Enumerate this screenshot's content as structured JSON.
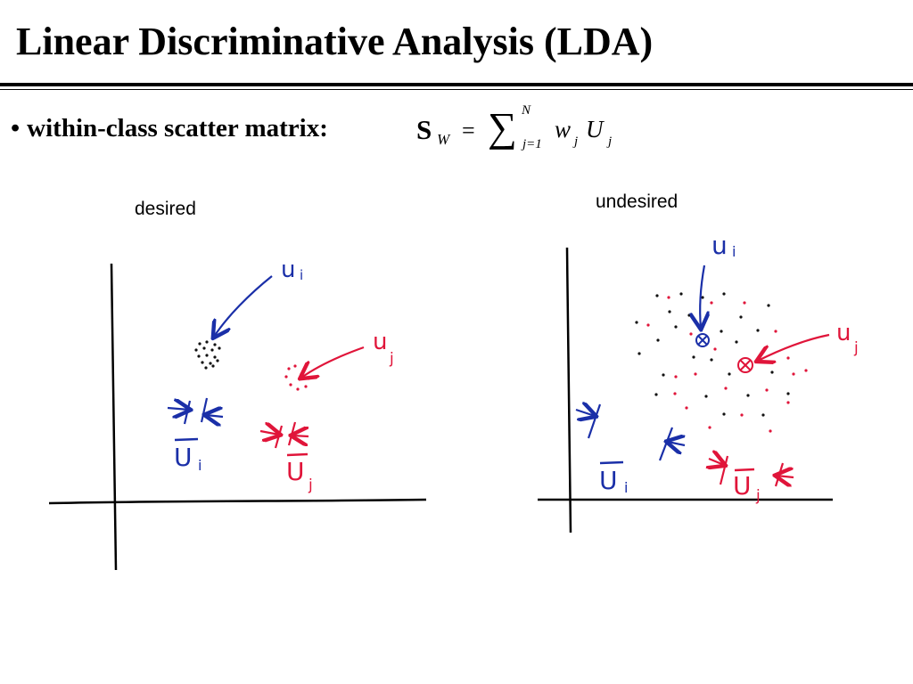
{
  "slide": {
    "title": "Linear Discriminative Analysis (LDA)",
    "bullet": "within-class scatter matrix:",
    "bullet_symbol": "•",
    "formula": {
      "lhs": "S",
      "lhs_sub": "W",
      "eq": "=",
      "sum_symbol": "∑",
      "sum_upper": "N",
      "sum_lower": "j=1",
      "term_w": "w",
      "term_w_sub": "j",
      "term_u": "U",
      "term_u_sub": "j"
    }
  },
  "desired": {
    "label": "desired",
    "ui_label": "u",
    "ui_sub": "i",
    "uj_label": "u",
    "uj_sub": "j",
    "ubar_i": "U",
    "ubar_i_sub": "i",
    "ubar_j": "U",
    "ubar_j_sub": "j"
  },
  "undesired": {
    "label": "undesired",
    "ui_label": "u",
    "ui_sub": "i",
    "uj_label": "u",
    "uj_sub": "j",
    "ubar_i": "U",
    "ubar_i_sub": "i",
    "ubar_j": "U",
    "ubar_j_sub": "j",
    "mean_symbol": "⊗"
  },
  "colors": {
    "black": "#000000",
    "blue": "#1a2fa8",
    "red": "#e0153a"
  }
}
